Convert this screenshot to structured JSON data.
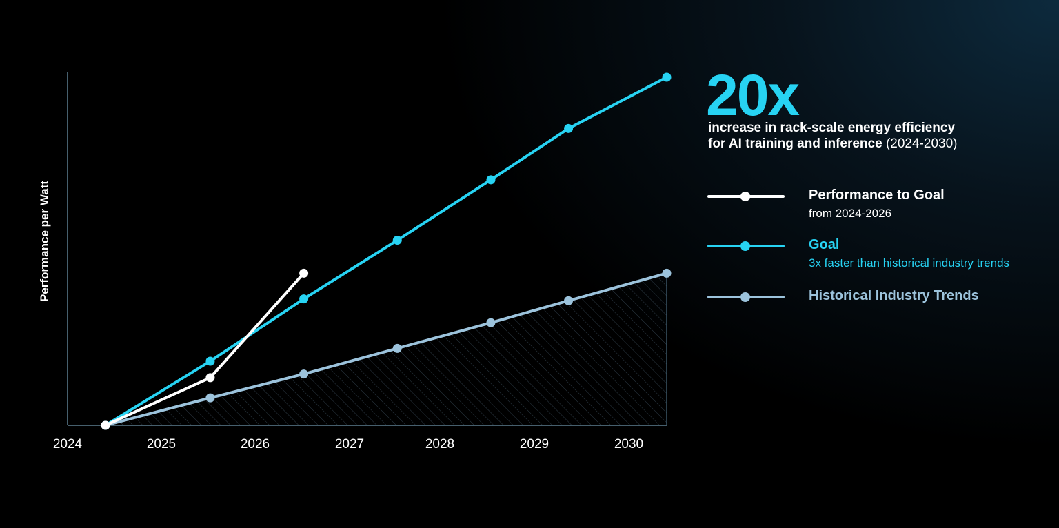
{
  "chart_data": {
    "type": "line",
    "ylabel": "Performance per Watt",
    "xlabel": "",
    "x_ticks": [
      "2024",
      "2025",
      "2026",
      "2027",
      "2028",
      "2029",
      "2030"
    ],
    "xlim": [
      2024.4,
      2030.4
    ],
    "ylim": [
      1,
      20
    ],
    "series": [
      {
        "name": "Performance to Goal",
        "color": "#ffffff",
        "x": [
          2024.4,
          2025.52,
          2026.52
        ],
        "y": [
          1,
          3.6,
          9.3
        ]
      },
      {
        "name": "Goal",
        "color": "#27d3f3",
        "x": [
          2024.4,
          2025.52,
          2026.52,
          2027.52,
          2028.52,
          2029.35,
          2030.4
        ],
        "y": [
          1,
          4.5,
          7.9,
          11.1,
          14.4,
          17.2,
          20
        ]
      },
      {
        "name": "Historical Industry Trends",
        "color": "#9cc3dc",
        "x": [
          2024.4,
          2025.52,
          2026.52,
          2027.52,
          2028.52,
          2029.35,
          2030.4
        ],
        "y": [
          1,
          2.5,
          3.8,
          5.2,
          6.6,
          7.8,
          9.3
        ]
      }
    ],
    "grid": false,
    "legend_position": "right"
  },
  "headline": {
    "value": "20x",
    "line1": "increase in rack-scale energy efficiency",
    "line2_bold": "for AI training and inference",
    "line2_range": " (2024-2030)"
  },
  "legend": [
    {
      "name": "Performance to Goal",
      "desc": "from 2024-2026",
      "color": "#ffffff",
      "name_color": "#ffffff",
      "desc_color": "#ffffff"
    },
    {
      "name": "Goal",
      "desc": "3x faster than historical industry trends",
      "color": "#27d3f3",
      "name_color": "#27d3f3",
      "desc_color": "#27d3f3"
    },
    {
      "name": "Historical Industry Trends",
      "desc": "",
      "color": "#9cc3dc",
      "name_color": "#9cc3dc",
      "desc_color": "#9cc3dc"
    }
  ]
}
